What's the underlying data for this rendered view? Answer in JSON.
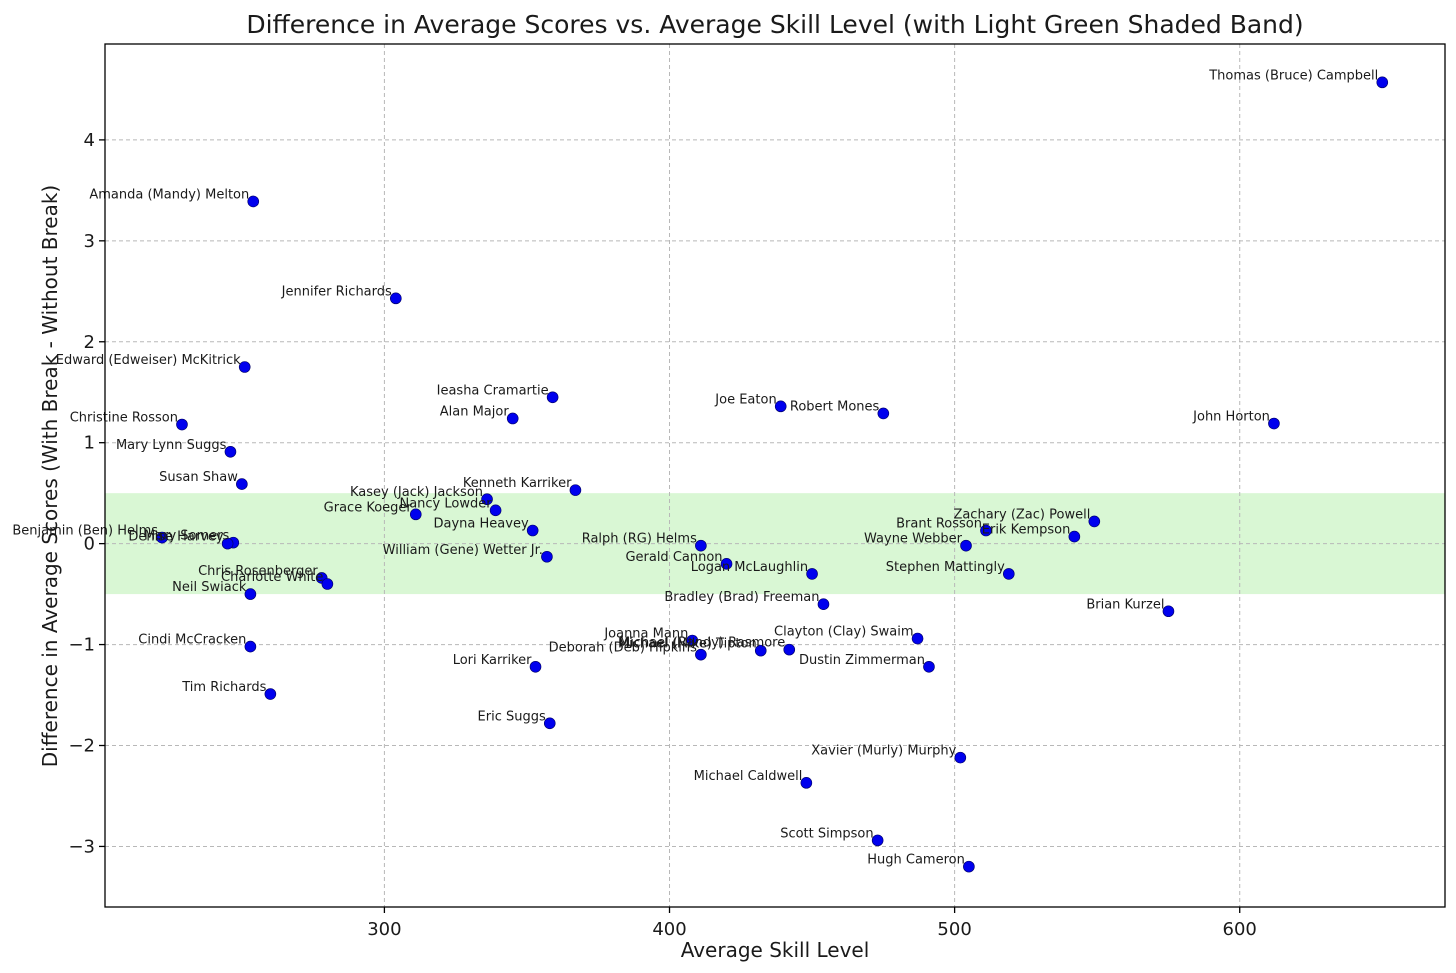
{
  "chart_data": {
    "type": "scatter",
    "title": "Difference in Average Scores vs. Average Skill Level (with Light Green Shaded Band)",
    "xlabel": "Average Skill Level",
    "ylabel": "Difference in Average Scores (With Break - Without Break)",
    "xlim": [
      202,
      672
    ],
    "ylim": [
      -3.6,
      4.95
    ],
    "xticks": [
      300,
      400,
      500,
      600
    ],
    "yticks": [
      -3,
      -2,
      -1,
      0,
      1,
      2,
      3,
      4
    ],
    "xtick_labels": [
      "300",
      "400",
      "500",
      "600"
    ],
    "ytick_labels": [
      "−3",
      "−2",
      "−1",
      "0",
      "1",
      "2",
      "3",
      "4"
    ],
    "grid": true,
    "band": {
      "y_from": -0.5,
      "y_to": 0.5,
      "color": "#d9f7d4"
    },
    "marker_color": "#0000ee",
    "points": [
      {
        "name": "Thomas (Bruce) Campbell",
        "x": 650,
        "y": 4.57
      },
      {
        "name": "Amanda (Mandy) Melton",
        "x": 254,
        "y": 3.39
      },
      {
        "name": "Jennifer Richards",
        "x": 304,
        "y": 2.43
      },
      {
        "name": "Edward (Edweiser) McKitrick",
        "x": 251,
        "y": 1.75
      },
      {
        "name": "Ieasha Cramartie",
        "x": 359,
        "y": 1.45
      },
      {
        "name": "Alan Major",
        "x": 345,
        "y": 1.24
      },
      {
        "name": "Joe Eaton",
        "x": 439,
        "y": 1.36
      },
      {
        "name": "Robert Mones",
        "x": 475,
        "y": 1.29
      },
      {
        "name": "John Horton",
        "x": 612,
        "y": 1.19
      },
      {
        "name": "Christine Rosson",
        "x": 229,
        "y": 1.18
      },
      {
        "name": "Mary Lynn Suggs",
        "x": 246,
        "y": 0.91
      },
      {
        "name": "Susan Shaw",
        "x": 250,
        "y": 0.59
      },
      {
        "name": "Kenneth Karriker",
        "x": 367,
        "y": 0.53
      },
      {
        "name": "Kasey (Jack) Jackson",
        "x": 336,
        "y": 0.44
      },
      {
        "name": "Nancy Lowder",
        "x": 339,
        "y": 0.33
      },
      {
        "name": "Grace  Koeger",
        "x": 311,
        "y": 0.29
      },
      {
        "name": "Dayna Heavey",
        "x": 352,
        "y": 0.13
      },
      {
        "name": "Zachary (Zac) Powell",
        "x": 549,
        "y": 0.22
      },
      {
        "name": "Brant Rosson",
        "x": 511,
        "y": 0.13
      },
      {
        "name": "Erik Kempson",
        "x": 542,
        "y": 0.07
      },
      {
        "name": "Benjamin (Ben) Helms",
        "x": 222,
        "y": 0.06
      },
      {
        "name": "Mary Somers",
        "x": 247,
        "y": 0.01
      },
      {
        "name": "Denise Harvey",
        "x": 245,
        "y": 0.0
      },
      {
        "name": "Ralph (RG) Helms",
        "x": 411,
        "y": -0.02
      },
      {
        "name": "Wayne Webber",
        "x": 504,
        "y": -0.02
      },
      {
        "name": "William (Gene) Wetter Jr.",
        "x": 357,
        "y": -0.13
      },
      {
        "name": "Gerald Cannon",
        "x": 420,
        "y": -0.2
      },
      {
        "name": "Logan McLaughlin",
        "x": 450,
        "y": -0.3
      },
      {
        "name": "Stephen Mattingly",
        "x": 519,
        "y": -0.3
      },
      {
        "name": "Chris Rosenberger",
        "x": 278,
        "y": -0.34
      },
      {
        "name": "Charlotte White",
        "x": 280,
        "y": -0.4
      },
      {
        "name": "Neil Swiack",
        "x": 253,
        "y": -0.5
      },
      {
        "name": "Bradley (Brad) Freeman",
        "x": 454,
        "y": -0.6
      },
      {
        "name": "Brian Kurzel",
        "x": 575,
        "y": -0.67
      },
      {
        "name": "Clayton (Clay) Swaim",
        "x": 487,
        "y": -0.94
      },
      {
        "name": "Joanna Mann",
        "x": 408,
        "y": -0.96
      },
      {
        "name": "Cindi McCracken",
        "x": 253,
        "y": -1.02
      },
      {
        "name": "Michael (Randy) Rasmore",
        "x": 442,
        "y": -1.05
      },
      {
        "name": "Michael (Mike) Tipton",
        "x": 432,
        "y": -1.06
      },
      {
        "name": "Deborah (Deb) Hipkins",
        "x": 411,
        "y": -1.1
      },
      {
        "name": "Lori Karriker",
        "x": 353,
        "y": -1.22
      },
      {
        "name": "Dustin Zimmerman",
        "x": 491,
        "y": -1.22
      },
      {
        "name": "Tim Richards",
        "x": 260,
        "y": -1.49
      },
      {
        "name": "Eric Suggs",
        "x": 358,
        "y": -1.78
      },
      {
        "name": "Xavier (Murly) Murphy",
        "x": 502,
        "y": -2.12
      },
      {
        "name": "Michael Caldwell",
        "x": 448,
        "y": -2.37
      },
      {
        "name": "Scott Simpson",
        "x": 473,
        "y": -2.94
      },
      {
        "name": "Hugh Cameron",
        "x": 505,
        "y": -3.2
      }
    ]
  }
}
